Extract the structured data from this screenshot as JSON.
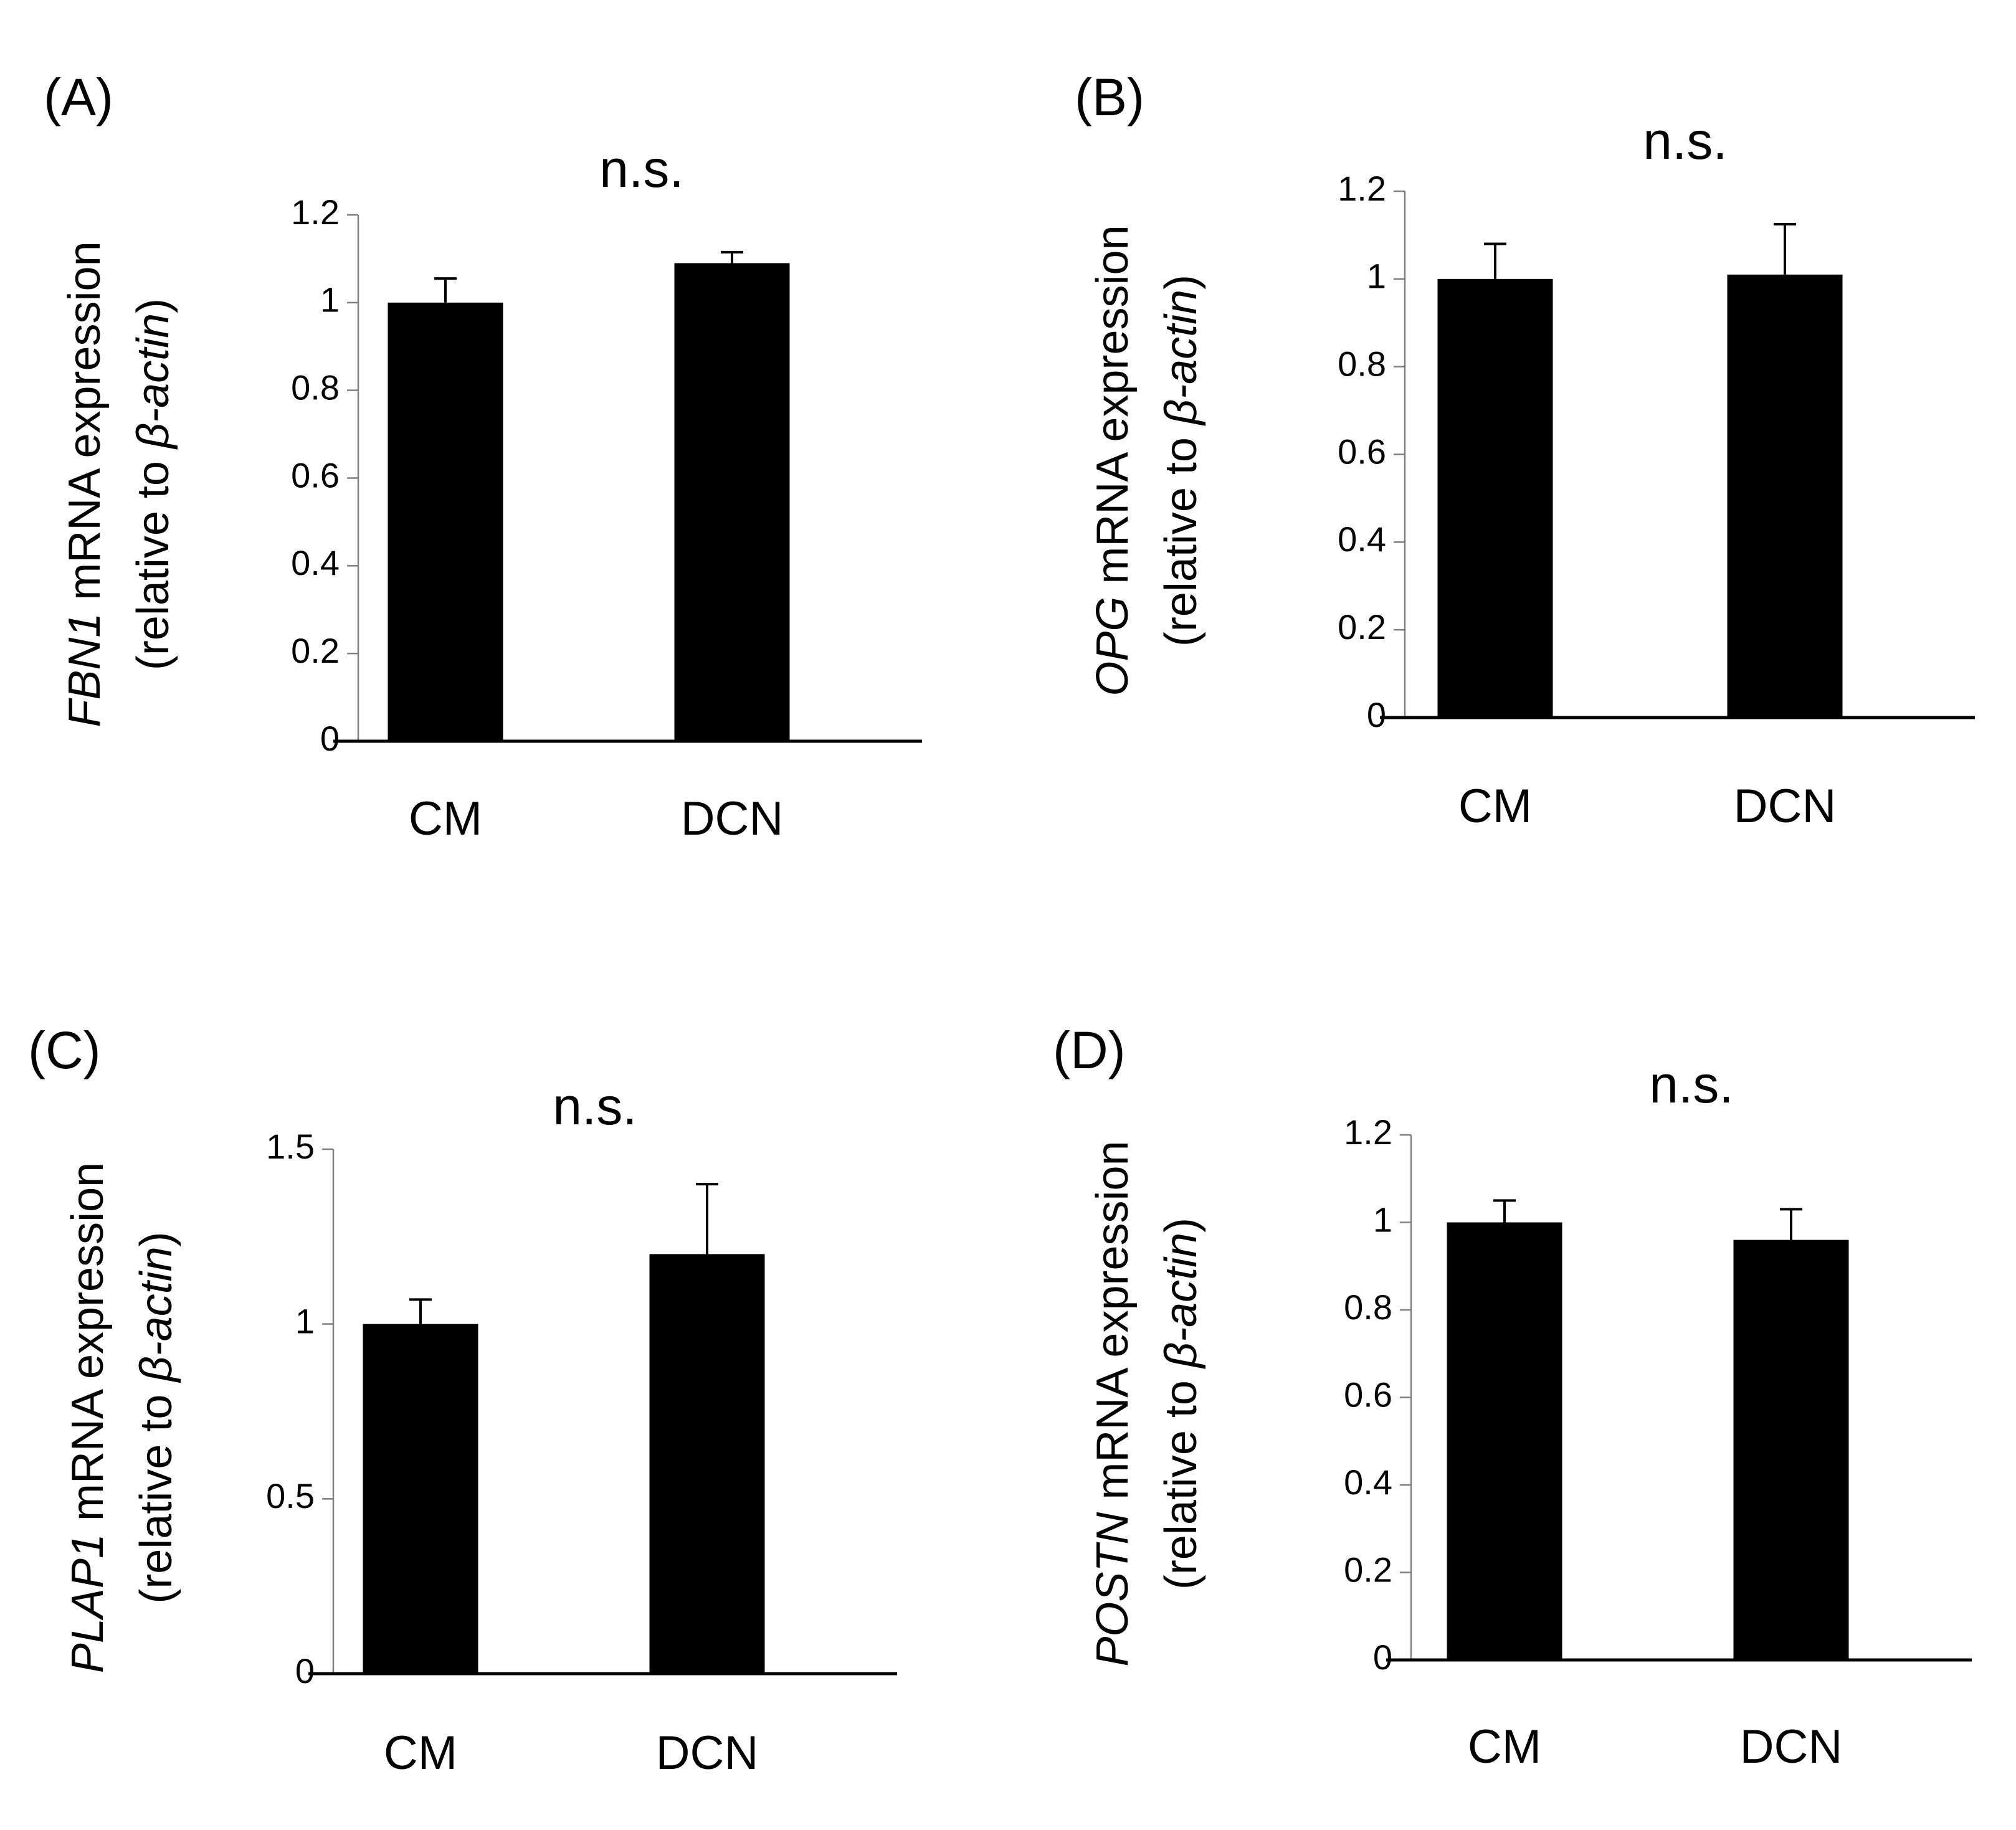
{
  "chart_data": [
    {
      "type": "bar",
      "panel": "(A)",
      "title": "n.s.",
      "categories": [
        "CM",
        "DCN"
      ],
      "values": [
        1.0,
        1.09
      ],
      "errors": [
        0.055,
        0.025
      ],
      "ylabel_gene": "FBN1",
      "ylabel_rest": " mRNA expression",
      "ylabel_line2_prefix": "(relative to ",
      "ylabel_line2_italic": "β-actin",
      "ylabel_line2_suffix": ")",
      "ylim": [
        0,
        1.2
      ],
      "yticks": [
        "0",
        "0.2",
        "0.4",
        "0.6",
        "0.8",
        "1",
        "1.2"
      ],
      "ytick_values": [
        0,
        0.2,
        0.4,
        0.6,
        0.8,
        1,
        1.2
      ],
      "grid": false
    },
    {
      "type": "bar",
      "panel": "(B)",
      "title": "n.s.",
      "categories": [
        "CM",
        "DCN"
      ],
      "values": [
        1.0,
        1.01
      ],
      "errors": [
        0.08,
        0.115
      ],
      "ylabel_gene": "OPG",
      "ylabel_rest": " mRNA expression",
      "ylabel_line2_prefix": "(relative to ",
      "ylabel_line2_italic": "β-actin",
      "ylabel_line2_suffix": ")",
      "ylim": [
        0,
        1.2
      ],
      "yticks": [
        "0",
        "0.2",
        "0.4",
        "0.6",
        "0.8",
        "1",
        "1.2"
      ],
      "ytick_values": [
        0,
        0.2,
        0.4,
        0.6,
        0.8,
        1,
        1.2
      ],
      "grid": false
    },
    {
      "type": "bar",
      "panel": "(C)",
      "title": "n.s.",
      "categories": [
        "CM",
        "DCN"
      ],
      "values": [
        1.0,
        1.2
      ],
      "errors": [
        0.07,
        0.2
      ],
      "ylabel_gene": "PLAP1",
      "ylabel_rest": " mRNA expression",
      "ylabel_line2_prefix": "(relative to ",
      "ylabel_line2_italic": "β-actin",
      "ylabel_line2_suffix": ")",
      "ylim": [
        0,
        1.5
      ],
      "yticks": [
        "0",
        "0.5",
        "1",
        "1.5"
      ],
      "ytick_values": [
        0,
        0.5,
        1,
        1.5
      ],
      "grid": false
    },
    {
      "type": "bar",
      "panel": "(D)",
      "title": "n.s.",
      "categories": [
        "CM",
        "DCN"
      ],
      "values": [
        1.0,
        0.96
      ],
      "errors": [
        0.05,
        0.07
      ],
      "ylabel_gene": "POSTN",
      "ylabel_rest": " mRNA expression",
      "ylabel_line2_prefix": "(relative to ",
      "ylabel_line2_italic": "β-actin",
      "ylabel_line2_suffix": ")",
      "ylim": [
        0,
        1.2
      ],
      "yticks": [
        "0",
        "0.2",
        "0.4",
        "0.6",
        "0.8",
        "1",
        "1.2"
      ],
      "ytick_values": [
        0,
        0.2,
        0.4,
        0.6,
        0.8,
        1,
        1.2
      ],
      "grid": false
    }
  ]
}
